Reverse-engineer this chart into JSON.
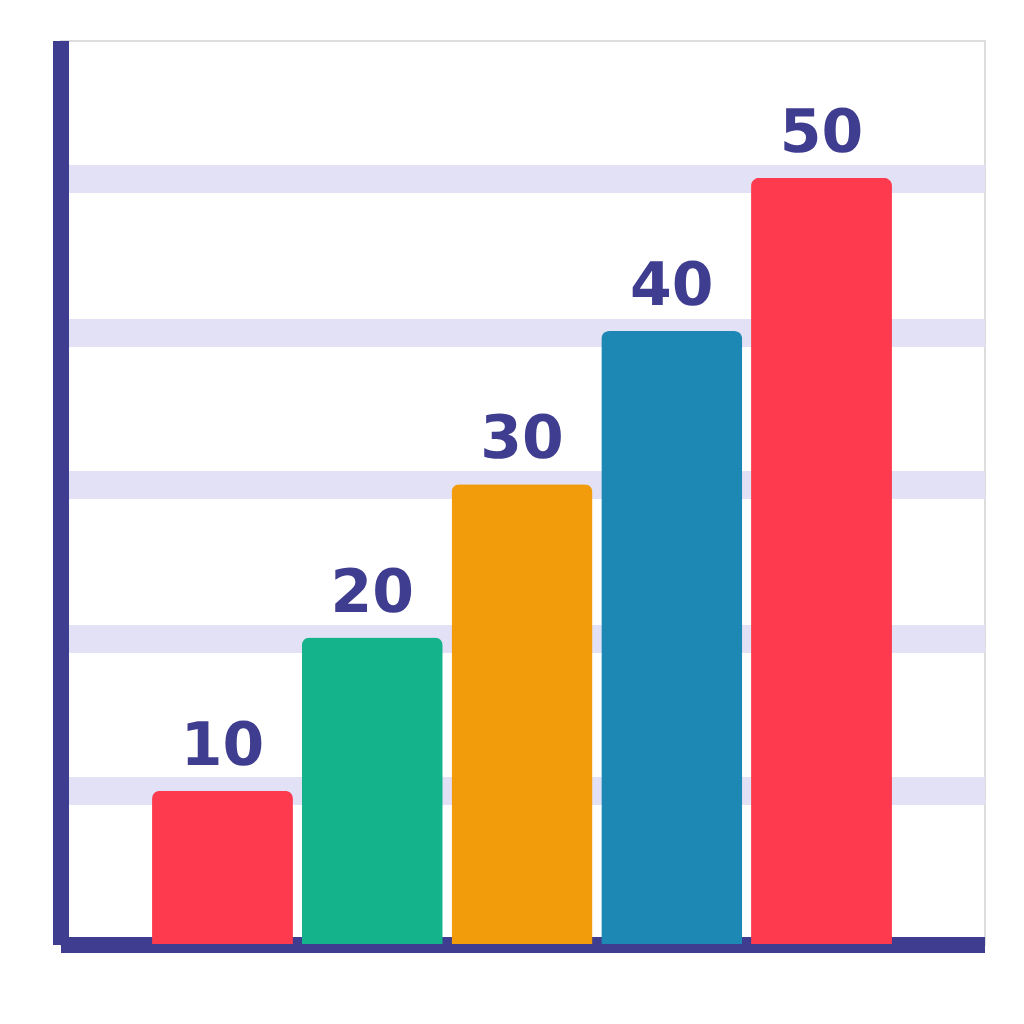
{
  "chart_data": {
    "type": "bar",
    "categories": [
      null,
      null,
      null,
      null,
      null
    ],
    "values": [
      10,
      20,
      30,
      40,
      50
    ],
    "colors": [
      "#fd3a4e",
      "#14b38b",
      "#f29b0b",
      "#1e88b4",
      "#fd3a4e"
    ],
    "ylim": [
      0,
      59
    ],
    "yticks": [
      {
        "value": 10,
        "label": null
      },
      {
        "value": 20,
        "label": null
      },
      {
        "value": 30,
        "label": null
      },
      {
        "value": 40,
        "label": null
      },
      {
        "value": 50,
        "label": null
      }
    ],
    "grid": "y",
    "data_labels": true,
    "tick_labels": false
  }
}
